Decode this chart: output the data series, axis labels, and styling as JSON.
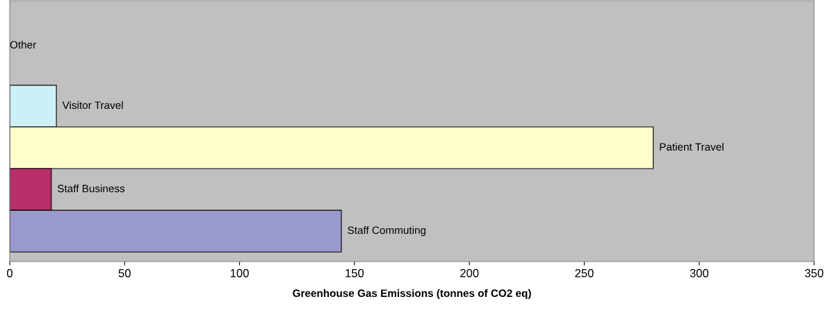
{
  "chart_data": {
    "type": "bar",
    "orientation": "horizontal",
    "xlabel": "Greenhouse Gas Emissions (tonnes of CO2 eq)",
    "categories": [
      "Other",
      "Visitor Travel",
      "Patient Travel",
      "Staff Business",
      "Staff Commuting"
    ],
    "values": [
      0,
      20.3,
      280,
      18.1,
      144.3
    ],
    "colors": [
      "#ffffff",
      "#ccf0f8",
      "#ffffcc",
      "#b8306a",
      "#9999cc"
    ],
    "xlim": [
      0,
      350
    ],
    "xticks": [
      0,
      50,
      100,
      150,
      200,
      250,
      300,
      350
    ],
    "tick_labels": "x",
    "grid": false,
    "legend": false
  }
}
